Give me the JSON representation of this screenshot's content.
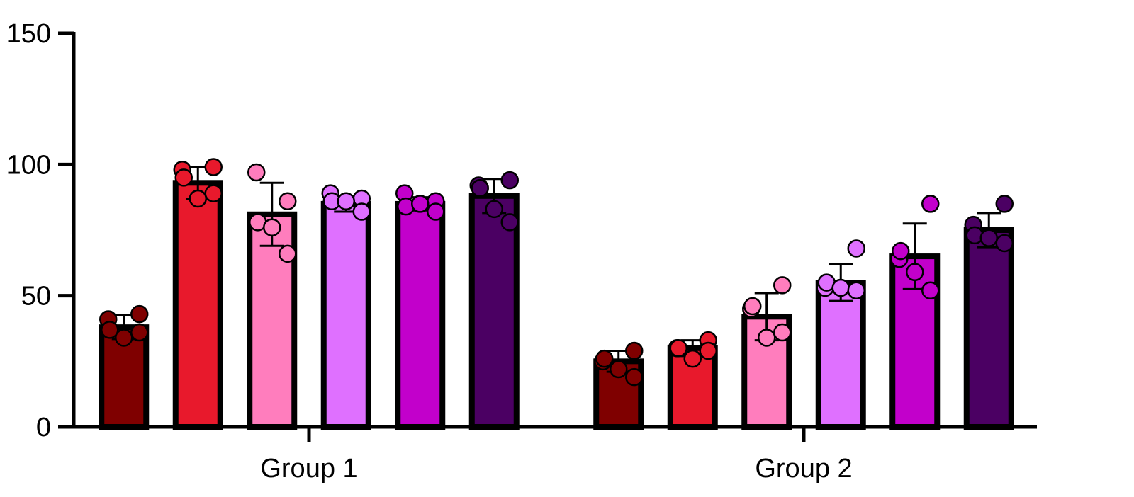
{
  "chart_data": {
    "type": "bar",
    "categories": [
      "Group 1",
      "Group 2"
    ],
    "ylim": [
      0,
      150
    ],
    "yticks": [
      0,
      50,
      100,
      150
    ],
    "grid": false,
    "legend": "none",
    "error_bars": "mean ± SD",
    "series": [
      {
        "color": "#7f0000",
        "means": [
          38,
          25
        ],
        "sd": [
          4.5,
          4
        ],
        "points": [
          [
            41,
            43,
            37,
            34,
            36
          ],
          [
            25,
            29,
            26,
            22,
            19
          ]
        ]
      },
      {
        "color": "#e8192c",
        "means": [
          93,
          30
        ],
        "sd": [
          6,
          3
        ],
        "points": [
          [
            98,
            99,
            95,
            87,
            89
          ],
          [
            30,
            33,
            30,
            26,
            29
          ]
        ]
      },
      {
        "color": "#ff7dbd",
        "means": [
          81,
          42
        ],
        "sd": [
          12,
          9
        ],
        "points": [
          [
            97,
            86,
            78,
            76,
            66
          ],
          [
            45,
            54,
            46,
            34,
            36
          ]
        ]
      },
      {
        "color": "#df70ff",
        "means": [
          85,
          55
        ],
        "sd": [
          3,
          7
        ],
        "points": [
          [
            89,
            87,
            86,
            86,
            82
          ],
          [
            53,
            68,
            55,
            53,
            52
          ]
        ]
      },
      {
        "color": "#c200cb",
        "means": [
          85,
          65
        ],
        "sd": [
          2.5,
          12.5
        ],
        "points": [
          [
            89,
            86,
            84,
            85,
            82
          ],
          [
            64,
            85,
            67,
            59,
            52
          ]
        ]
      },
      {
        "color": "#4b0063",
        "means": [
          88,
          75
        ],
        "sd": [
          6.5,
          6.5
        ],
        "points": [
          [
            92,
            94,
            91,
            83,
            78
          ],
          [
            77,
            85,
            73,
            72,
            70
          ]
        ]
      }
    ]
  }
}
